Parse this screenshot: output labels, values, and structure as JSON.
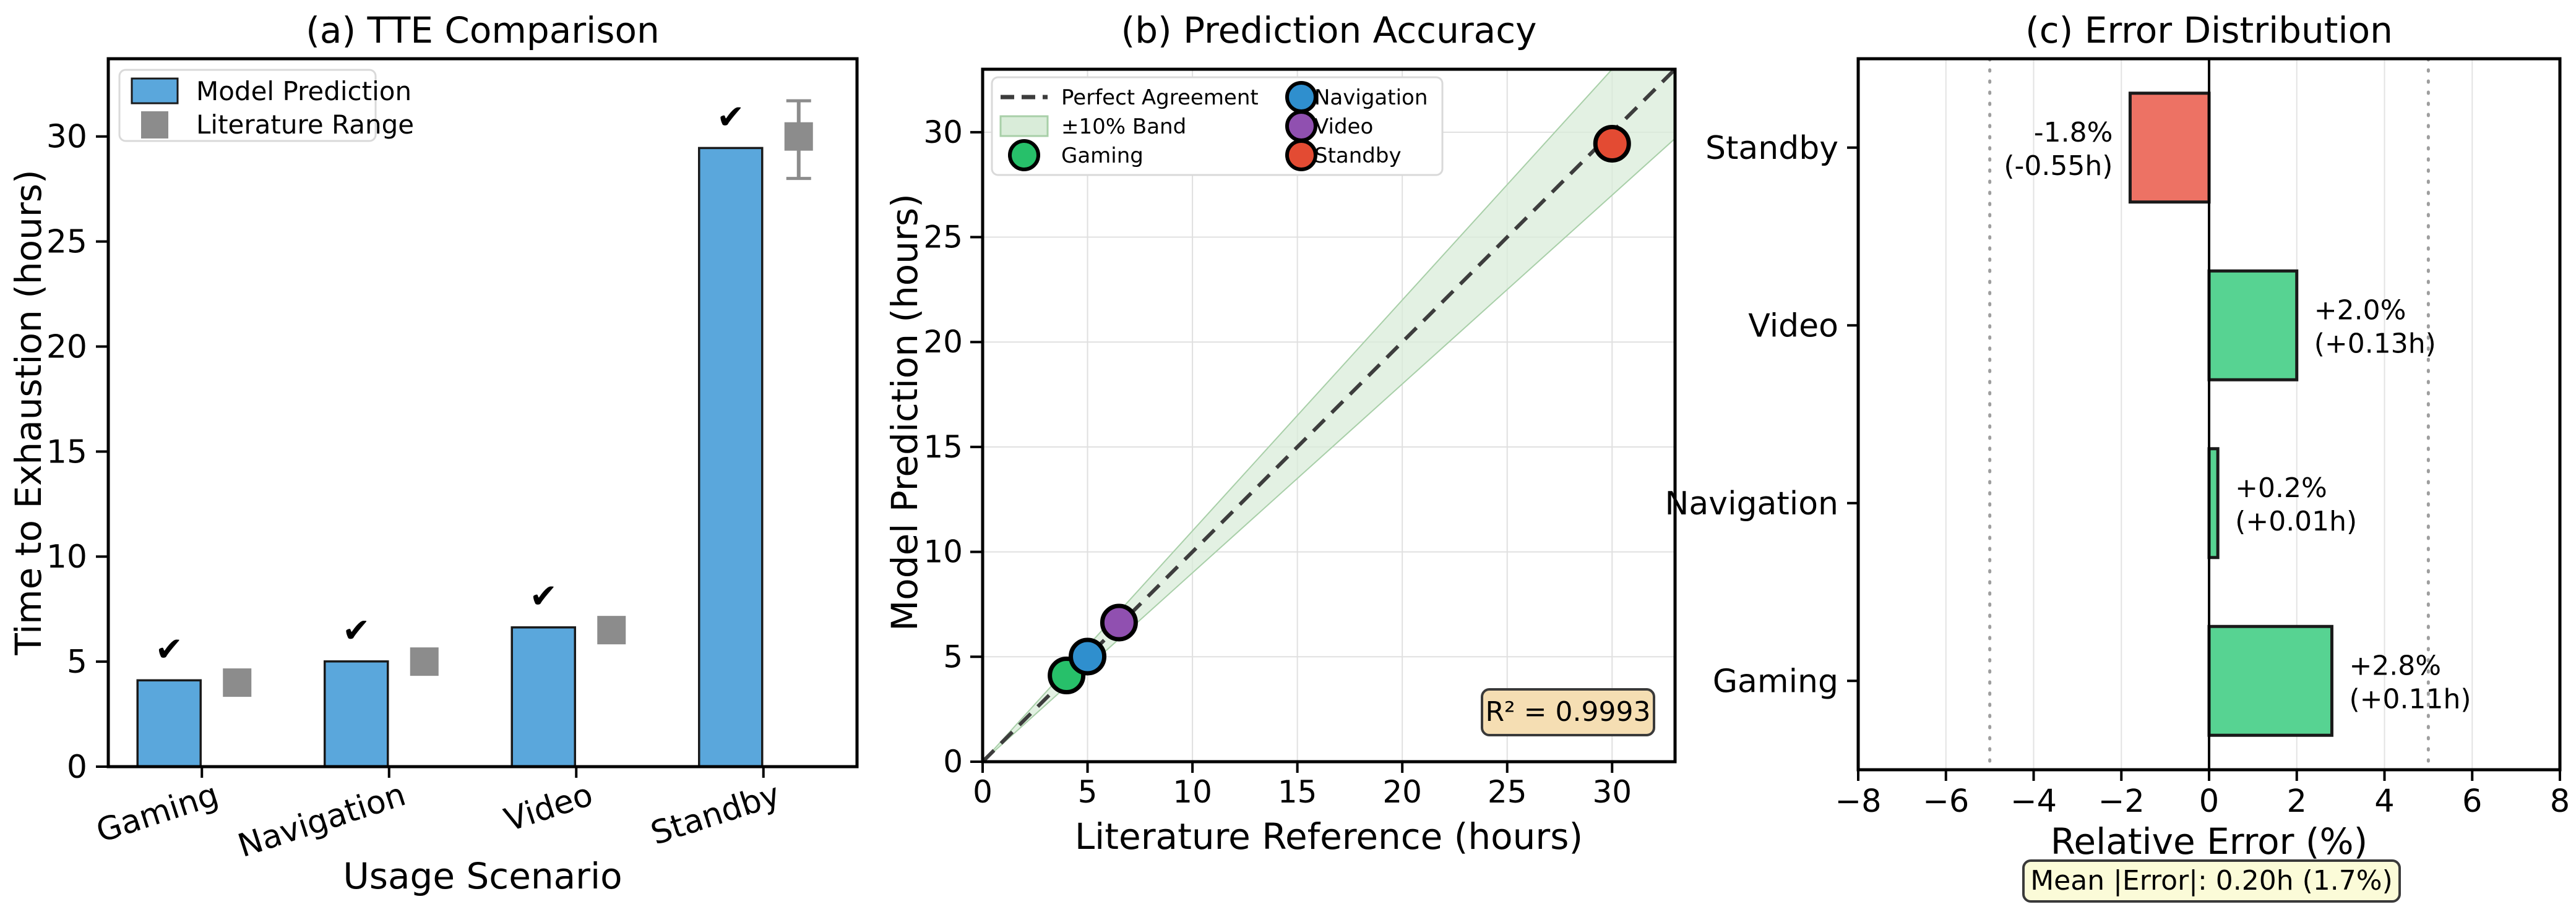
{
  "figure": {
    "background": "#ffffff",
    "frame_color": "#000000"
  },
  "chart_data": [
    {
      "type": "bar",
      "title": "(a) TTE Comparison",
      "xlabel": "Usage Scenario",
      "ylabel": "Time to Exhaustion (hours)",
      "categories": [
        "Gaming",
        "Navigation",
        "Video",
        "Standby"
      ],
      "series": [
        {
          "name": "Model Prediction",
          "values": [
            4.11,
            5.01,
            6.63,
            29.45
          ],
          "color": "#5aa7dc"
        },
        {
          "name": "Literature Range",
          "mid": [
            4.0,
            5.0,
            6.5,
            30.0
          ],
          "low": [
            3.5,
            4.5,
            6.0,
            28.0
          ],
          "high": [
            4.5,
            5.5,
            7.0,
            31.7
          ],
          "color": "#8c8c8c"
        }
      ],
      "ylim": [
        0,
        33.7
      ],
      "yticks": [
        0,
        5,
        10,
        15,
        20,
        25,
        30
      ],
      "within_range_marker": "✔",
      "check_color": "#0f8a0f",
      "legend_position": "upper left",
      "grid": false
    },
    {
      "type": "scatter",
      "title": "(b) Prediction Accuracy",
      "xlabel": "Literature Reference (hours)",
      "ylabel": "Model Prediction (hours)",
      "xlim": [
        0,
        33
      ],
      "ylim": [
        0,
        33
      ],
      "xticks": [
        0,
        5,
        10,
        15,
        20,
        25,
        30
      ],
      "yticks": [
        0,
        5,
        10,
        15,
        20,
        25,
        30
      ],
      "grid": true,
      "grid_color": "#e0e0e0",
      "band_pct": 10,
      "band_fill": "#d9ecd9",
      "band_edge": "#a8cfa8",
      "diagonal_color": "#3d3d3d",
      "legend": [
        {
          "label": "Perfect Agreement",
          "swatch": "dashed-line",
          "color": "#3d3d3d"
        },
        {
          "label": "±10% Band",
          "swatch": "patch",
          "color": "#d9ecd9",
          "edge": "#a8cfa8"
        },
        {
          "label": "Gaming",
          "swatch": "circle",
          "color": "#27c06a"
        },
        {
          "label": "Navigation",
          "swatch": "circle",
          "color": "#2f8fce"
        },
        {
          "label": "Video",
          "swatch": "circle",
          "color": "#9050b0"
        },
        {
          "label": "Standby",
          "swatch": "circle",
          "color": "#e34b33"
        }
      ],
      "points": [
        {
          "name": "Gaming",
          "x": 4.0,
          "y": 4.11,
          "color": "#27c06a"
        },
        {
          "name": "Navigation",
          "x": 5.0,
          "y": 5.01,
          "color": "#2f8fce"
        },
        {
          "name": "Video",
          "x": 6.5,
          "y": 6.63,
          "color": "#9050b0"
        },
        {
          "name": "Standby",
          "x": 30.0,
          "y": 29.45,
          "color": "#e34b33"
        }
      ],
      "annotation": "R² = 0.9993"
    },
    {
      "type": "barh",
      "title": "(c) Error Distribution",
      "xlabel": "Relative Error (%)",
      "categories": [
        "Standby",
        "Video",
        "Navigation",
        "Gaming"
      ],
      "values_pct": [
        -1.8,
        2.0,
        0.2,
        2.8
      ],
      "values_hours": [
        -0.55,
        0.13,
        0.01,
        0.11
      ],
      "bar_labels": [
        [
          "-1.8%",
          "(-0.55h)"
        ],
        [
          "+2.0%",
          "(+0.13h)"
        ],
        [
          "+0.2%",
          "(+0.01h)"
        ],
        [
          "+2.8%",
          "(+0.11h)"
        ]
      ],
      "xlim": [
        -8,
        8
      ],
      "xticks": [
        -8,
        -6,
        -4,
        -2,
        0,
        2,
        4,
        6,
        8
      ],
      "xtick_labels": [
        "−8",
        "−6",
        "−4",
        "−2",
        "0",
        "2",
        "4",
        "6",
        "8"
      ],
      "reference_lines": [
        -5,
        5
      ],
      "positive_color": "#57d392",
      "negative_color": "#ed7264",
      "grid_color": "#e3e3e3",
      "ref_line_color": "#9e9e9e",
      "footer": "Mean |Error|: 0.20h (1.7%)"
    }
  ]
}
